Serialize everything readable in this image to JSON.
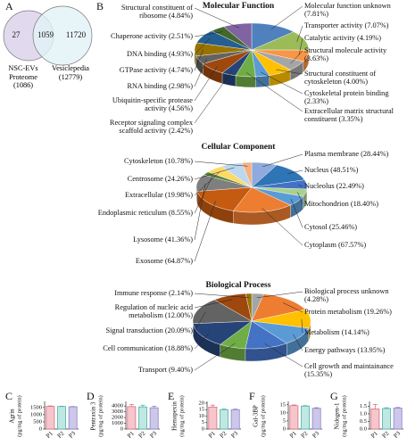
{
  "chart_data": [
    {
      "type": "venn",
      "panel": "A",
      "sets": [
        "NSC-EVs Proteome",
        "Vesiclepedia"
      ],
      "set_values": [
        1086,
        12779
      ],
      "set_value_labels": [
        "(1086)",
        "(12779)"
      ],
      "colors": [
        "#d9d1ea",
        "#e2f3f6"
      ],
      "values": [
        27,
        1059,
        11720
      ]
    },
    {
      "type": "pie",
      "panel": "B",
      "title": "Molecular Function",
      "categories": [
        "Molecular function unknown",
        "Transporter activity",
        "Catalytic activity",
        "Structural molecule activity",
        "Structural constituent of cytoskeleton",
        "Cytoskeletal protein binding",
        "Extracellular matrix structural constituent",
        "Receptor signaling complex scaffold activity",
        "Ubiquitin-specific protease activity",
        "RNA binding",
        "GTPase activity",
        "DNA binding",
        "Chaperone activity",
        "Structural constituent of ribosome"
      ],
      "values": [
        7.81,
        7.07,
        4.19,
        3.63,
        4.0,
        2.33,
        3.35,
        2.42,
        4.56,
        2.98,
        4.74,
        4.93,
        2.51,
        4.84
      ],
      "value_labels": [
        "(7.81%)",
        "(7.07%)",
        "(4.19%)",
        "(3.63%)",
        "(4.00%)",
        "(2.33%)",
        "(3.35%)",
        "(2.42%)",
        "(4.56%)",
        "(2.98%)",
        "(4.74%)",
        "(4.93%)",
        "(2.51%)",
        "(4.84%)"
      ],
      "colors": [
        "#4f81bd",
        "#9bbb59",
        "#f79646",
        "#a5a5a5",
        "#ffc000",
        "#5b9bd5",
        "#70ad47",
        "#264478",
        "#9e480e",
        "#636363",
        "#997300",
        "#255e91",
        "#43682b",
        "#8064a2"
      ]
    },
    {
      "type": "pie",
      "title": "Cellular Component",
      "categories": [
        "Plasma membrane",
        "Nucleus",
        "Nucleolus",
        "Mitochondrion",
        "Cytosol",
        "Cytoplasm",
        "Exosome",
        "Lysosome",
        "Endoplasmic reticulum",
        "Extracellular",
        "Centrosome",
        "Cytoskeleton"
      ],
      "values": [
        28.44,
        48.51,
        22.49,
        18.4,
        25.46,
        67.57,
        64.87,
        41.36,
        8.55,
        19.98,
        24.26,
        10.78
      ],
      "value_labels": [
        "(28.44%)",
        "(48.51%)",
        "(22.49%)",
        "(18.40%)",
        "(25.46%)",
        "(67.57%)",
        "(64.87%)",
        "(41.36%)",
        "(8.55%)",
        "(19.98%)",
        "(24.26%)",
        "(10.78%)"
      ],
      "colors": [
        "#8faadc",
        "#2e75b6",
        "#4472c4",
        "#a9d18e",
        "#5b9bd5",
        "#ed7d31",
        "#c55a11",
        "#7f7f7f",
        "#548235",
        "#ffd966",
        "#bdd7ee",
        "#f4b183"
      ]
    },
    {
      "type": "pie",
      "title": "Biological Process",
      "categories": [
        "Biological process unknown",
        "Protein metabolism",
        "Metabolism",
        "Energy pathways",
        "Cell growth and maintainance",
        "Transport",
        "Cell communication",
        "Signal transduction",
        "Regulation of  nucleic acid metabolism",
        "Immune response"
      ],
      "values": [
        4.28,
        19.26,
        14.14,
        13.95,
        15.35,
        9.4,
        18.88,
        20.09,
        12.0,
        2.14
      ],
      "value_labels": [
        "(4.28%)",
        "(19.26%)",
        "(14.14%)",
        "(13.95%)",
        "(15.35%)",
        "(9.40%)",
        "(18.88%)",
        "(20.09%)",
        "(12.00%)",
        "(2.14%)"
      ],
      "colors": [
        "#a5a5a5",
        "#ed7d31",
        "#ffc000",
        "#5b9bd5",
        "#4472c4",
        "#70ad47",
        "#264478",
        "#636363",
        "#9e480e",
        "#997300"
      ]
    },
    {
      "type": "bar",
      "panel": "C",
      "ylabel": "Agrin",
      "yunit": "(pg/mg of protein)",
      "categories": [
        "P1",
        "P2",
        "P3"
      ],
      "values": [
        1580,
        1570,
        1550
      ],
      "errors": [
        30,
        20,
        20
      ],
      "colors": [
        "#f7c6cc",
        "#bfe8e3",
        "#cdc8ea"
      ],
      "edge_colors": [
        "#d9707f",
        "#4fb3a8",
        "#8a80c4"
      ],
      "ylim": [
        0,
        1800
      ],
      "yticks": [
        0,
        500,
        1000,
        1500
      ]
    },
    {
      "type": "bar",
      "panel": "D",
      "ylabel": "Pentraxin 3",
      "yunit": "(pg/mg of protein)",
      "categories": [
        "P1",
        "P2",
        "P3"
      ],
      "values": [
        3900,
        3850,
        3700
      ],
      "errors": [
        350,
        300,
        250
      ],
      "colors": [
        "#f7c6cc",
        "#bfe8e3",
        "#cdc8ea"
      ],
      "edge_colors": [
        "#d9707f",
        "#4fb3a8",
        "#8a80c4"
      ],
      "ylim": [
        0,
        4500
      ],
      "yticks": [
        0,
        1000,
        2000,
        3000,
        4000
      ]
    },
    {
      "type": "bar",
      "panel": "E",
      "ylabel": "Hemopexin",
      "yunit": "(ng/mg of protein)",
      "categories": [
        "P1",
        "P2",
        "P3"
      ],
      "values": [
        17,
        15,
        15
      ],
      "errors": [
        1.5,
        0.5,
        0.4
      ],
      "colors": [
        "#f7c6cc",
        "#bfe8e3",
        "#cdc8ea"
      ],
      "edge_colors": [
        "#d9707f",
        "#4fb3a8",
        "#8a80c4"
      ],
      "ylim": [
        0,
        20
      ],
      "yticks": [
        0,
        5,
        10,
        15,
        20
      ]
    },
    {
      "type": "bar",
      "panel": "F",
      "ylabel": "Gal-3BP",
      "yunit": "(pg/mg of protein)",
      "categories": [
        "P1",
        "P2",
        "P3"
      ],
      "values": [
        14.5,
        14.2,
        12.8
      ],
      "errors": [
        0.4,
        0.3,
        0.4
      ],
      "colors": [
        "#f7c6cc",
        "#bfe8e3",
        "#cdc8ea"
      ],
      "edge_colors": [
        "#d9707f",
        "#4fb3a8",
        "#8a80c4"
      ],
      "ylim": [
        0,
        16
      ],
      "yticks": [
        0,
        5,
        10,
        15
      ]
    },
    {
      "type": "bar",
      "panel": "G",
      "ylabel": "Nidogen-1",
      "yunit": "(ng/mg of protein)",
      "categories": [
        "P1",
        "P2",
        "P3"
      ],
      "values": [
        1.32,
        1.35,
        1.38
      ],
      "errors": [
        0.3,
        0.05,
        0.04
      ],
      "colors": [
        "#f7c6cc",
        "#bfe8e3",
        "#cdc8ea"
      ],
      "edge_colors": [
        "#d9707f",
        "#4fb3a8",
        "#8a80c4"
      ],
      "ylim": [
        0,
        1.7
      ],
      "yticks": [
        {
          "value": 0,
          "label": "0.0"
        },
        0.5,
        {
          "value": 1,
          "label": "1.0"
        },
        1.5
      ]
    }
  ]
}
